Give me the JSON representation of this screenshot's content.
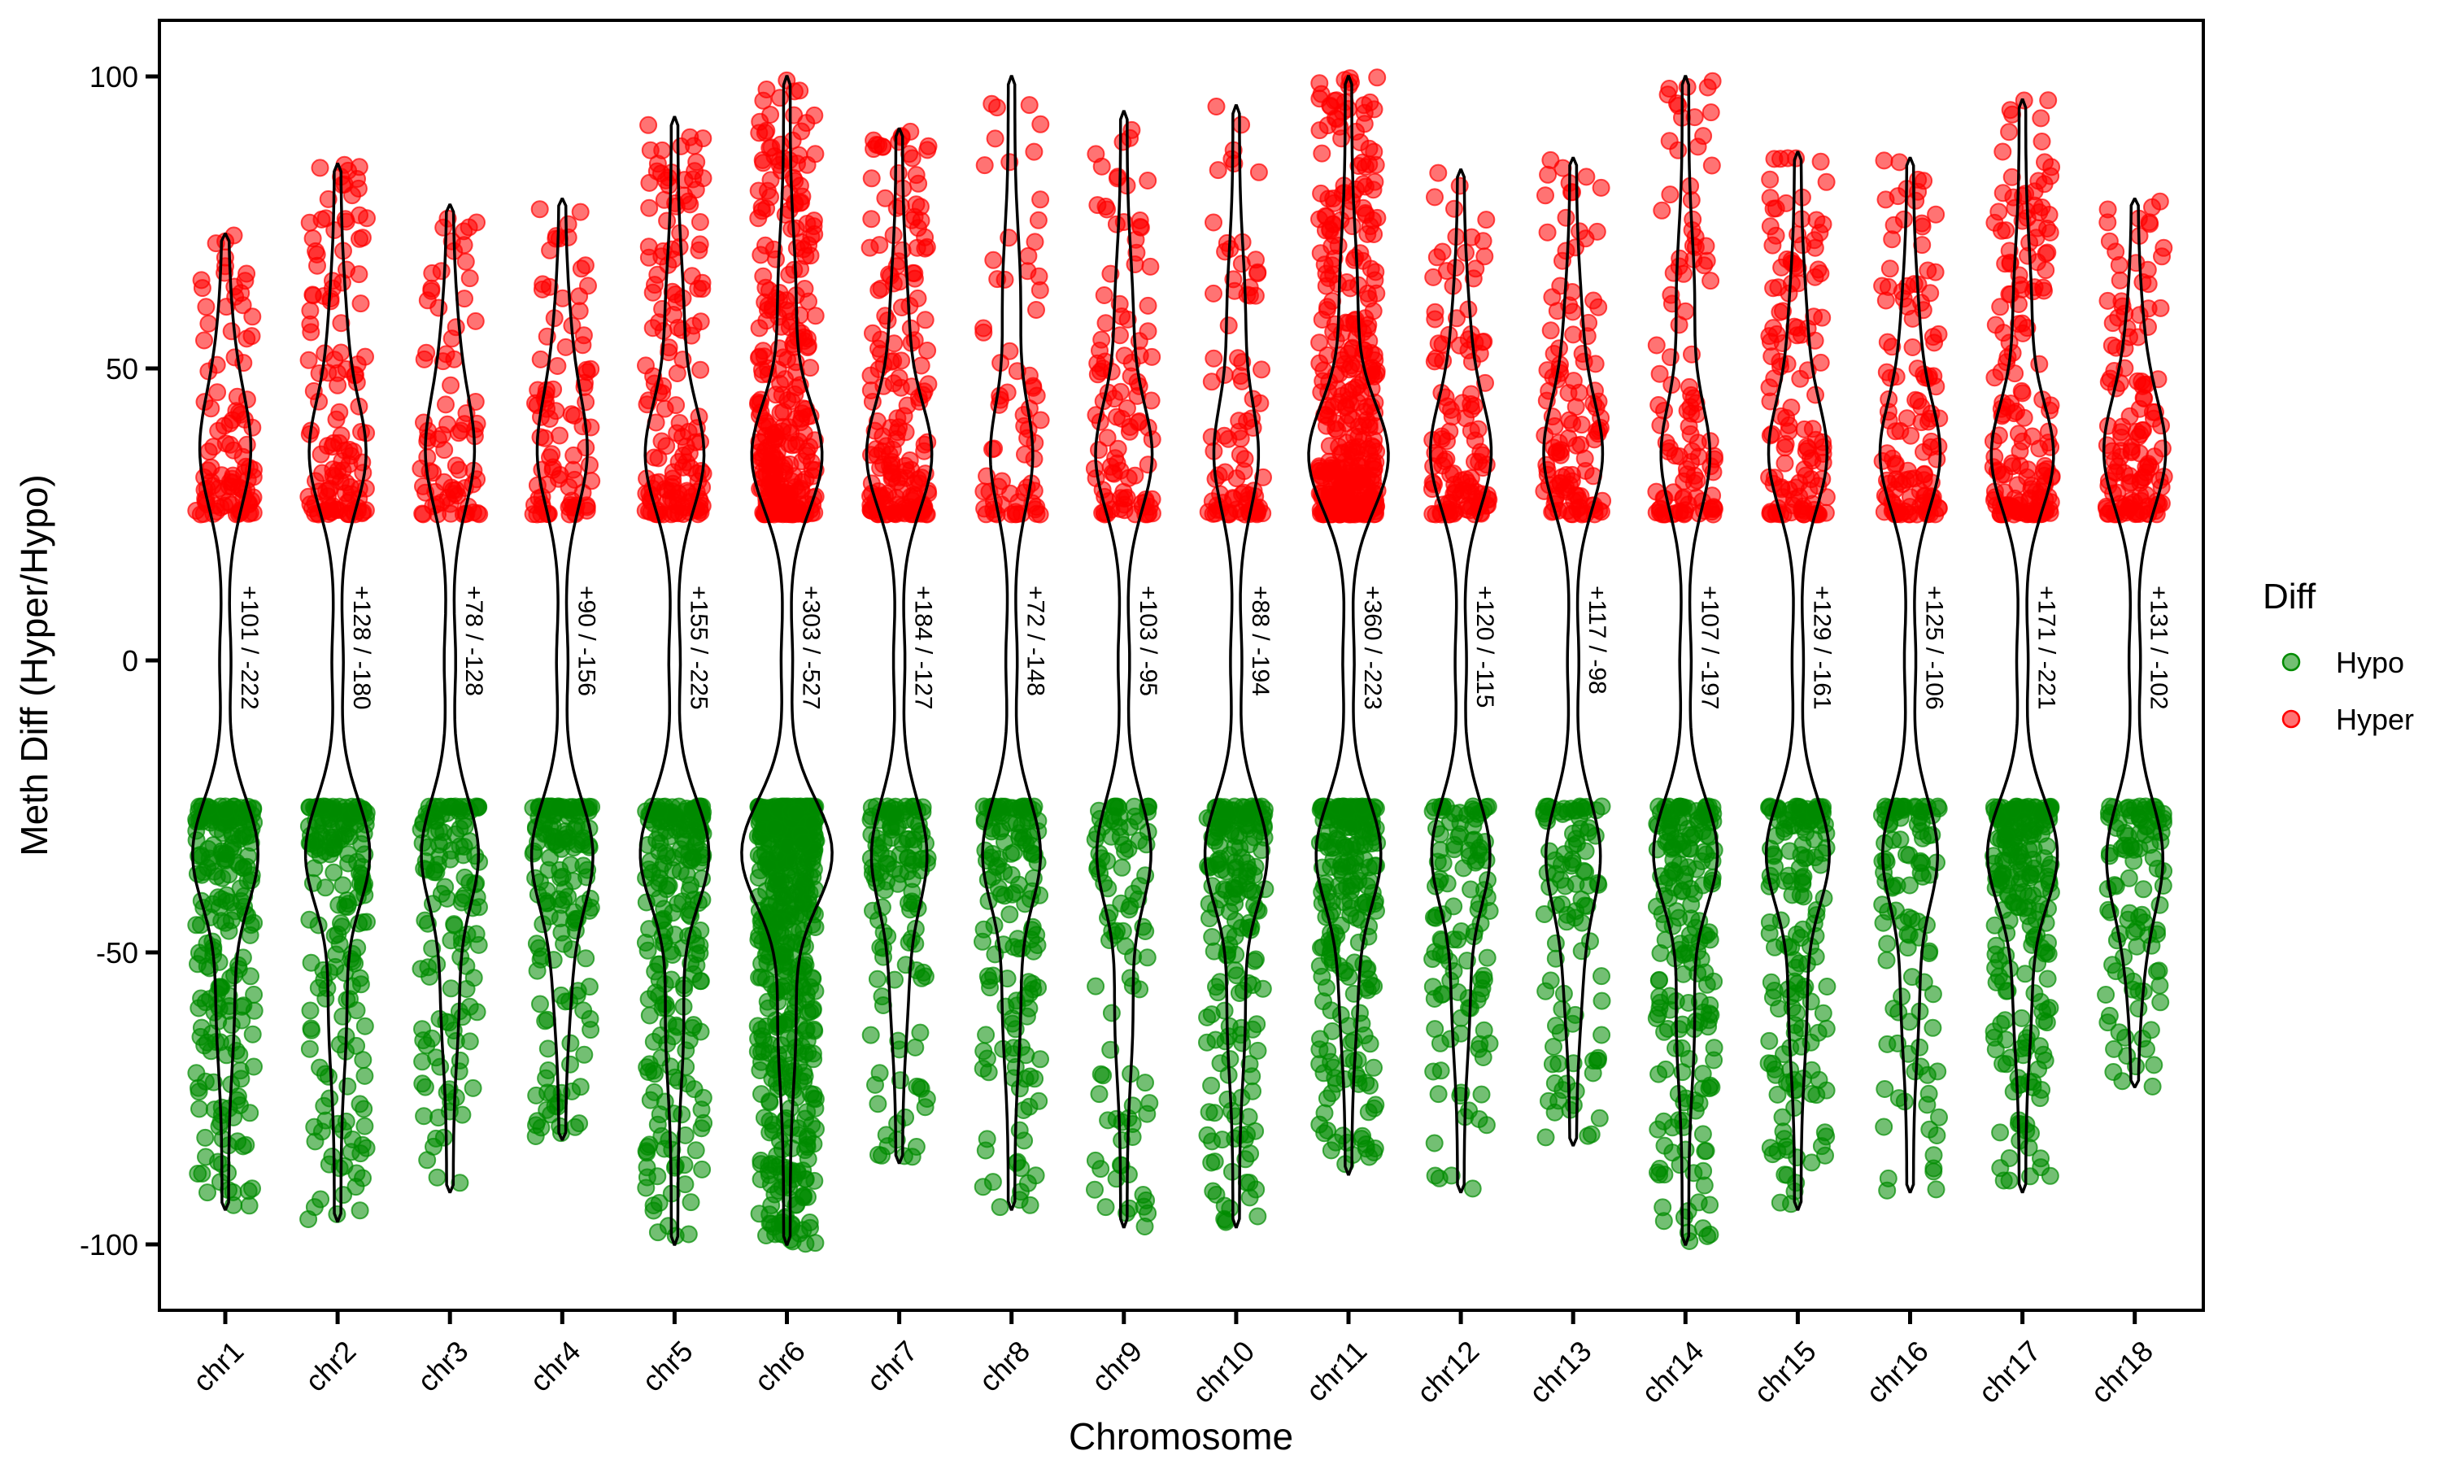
{
  "chart_data": {
    "type": "scatter",
    "subtype": "jittered points with violin outlines",
    "xlabel": "Chromosome",
    "ylabel": "Meth Diff (Hyper/Hypo)",
    "ylim": [
      -110,
      110
    ],
    "yticks": [
      100,
      50,
      0,
      -50,
      -100
    ],
    "ytick_labels": [
      "100",
      "50",
      "0",
      "-50",
      "-100"
    ],
    "categories": [
      "chr1",
      "chr2",
      "chr3",
      "chr4",
      "chr5",
      "chr6",
      "chr7",
      "chr8",
      "chr9",
      "chr10",
      "chr11",
      "chr12",
      "chr13",
      "chr14",
      "chr15",
      "chr16",
      "chr17",
      "chr18"
    ],
    "hyper_counts": [
      101,
      128,
      78,
      90,
      155,
      303,
      184,
      72,
      103,
      88,
      360,
      120,
      117,
      107,
      129,
      125,
      171,
      131
    ],
    "hypo_counts": [
      222,
      180,
      128,
      156,
      225,
      527,
      127,
      148,
      95,
      194,
      223,
      115,
      98,
      197,
      161,
      106,
      221,
      102
    ],
    "annotations": [
      "+101 / -222",
      "+128 / -180",
      "+78 / -128",
      "+90 / -156",
      "+155 / -225",
      "+303 / -527",
      "+184 / -127",
      "+72 / -148",
      "+103 / -95",
      "+88 / -194",
      "+360 / -223",
      "+120 / -115",
      "+117 / -98",
      "+107 / -197",
      "+129 / -161",
      "+125 / -106",
      "+171 / -221",
      "+131 / -102"
    ],
    "y_max": [
      73,
      85,
      78,
      79,
      93,
      100,
      91,
      100,
      94,
      95,
      100,
      84,
      86,
      100,
      87,
      86,
      96,
      79
    ],
    "y_min": [
      -94,
      -96,
      -91,
      -82,
      -100,
      -100,
      -86,
      -94,
      -97,
      -97,
      -88,
      -91,
      -83,
      -100,
      -94,
      -91,
      -91,
      -73
    ],
    "value_threshold": 25,
    "legend": {
      "title": "Diff",
      "entries": [
        {
          "name": "Hypo",
          "color": "#008B00"
        },
        {
          "name": "Hyper",
          "color": "#FF0000"
        }
      ],
      "position": "right"
    },
    "grid": false
  }
}
